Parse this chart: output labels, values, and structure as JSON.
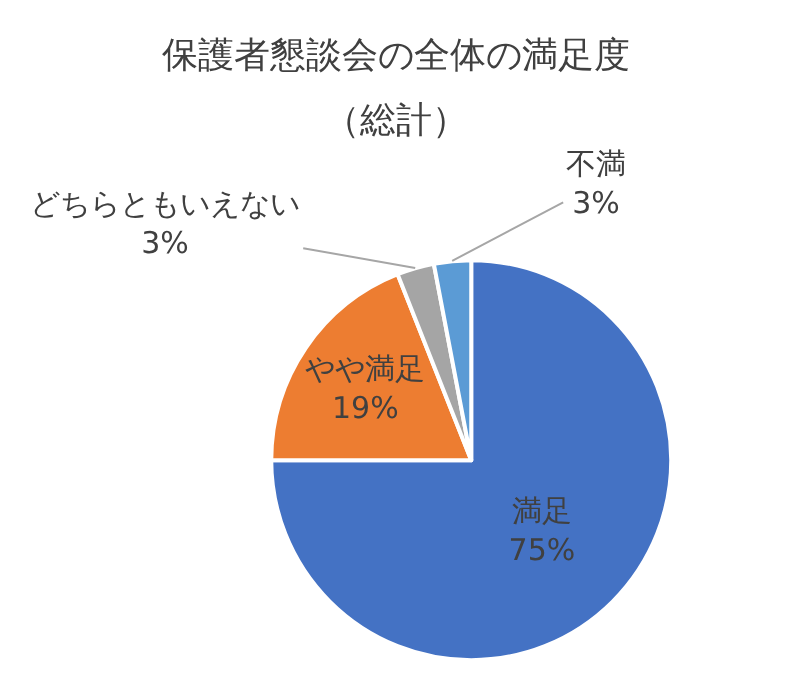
{
  "chart_data": {
    "type": "pie",
    "title": "保護者懇談会の全体の満足度",
    "subtitle": "（総計）",
    "categories": [
      "満足",
      "やや満足",
      "どちらともいえない",
      "不満"
    ],
    "values": [
      75,
      19,
      3,
      3
    ],
    "value_labels": [
      "75%",
      "19%",
      "3%",
      "3%"
    ],
    "colors": [
      "#4472c4",
      "#ed7d31",
      "#a5a5a5",
      "#5b9bd5"
    ],
    "legend": false
  }
}
